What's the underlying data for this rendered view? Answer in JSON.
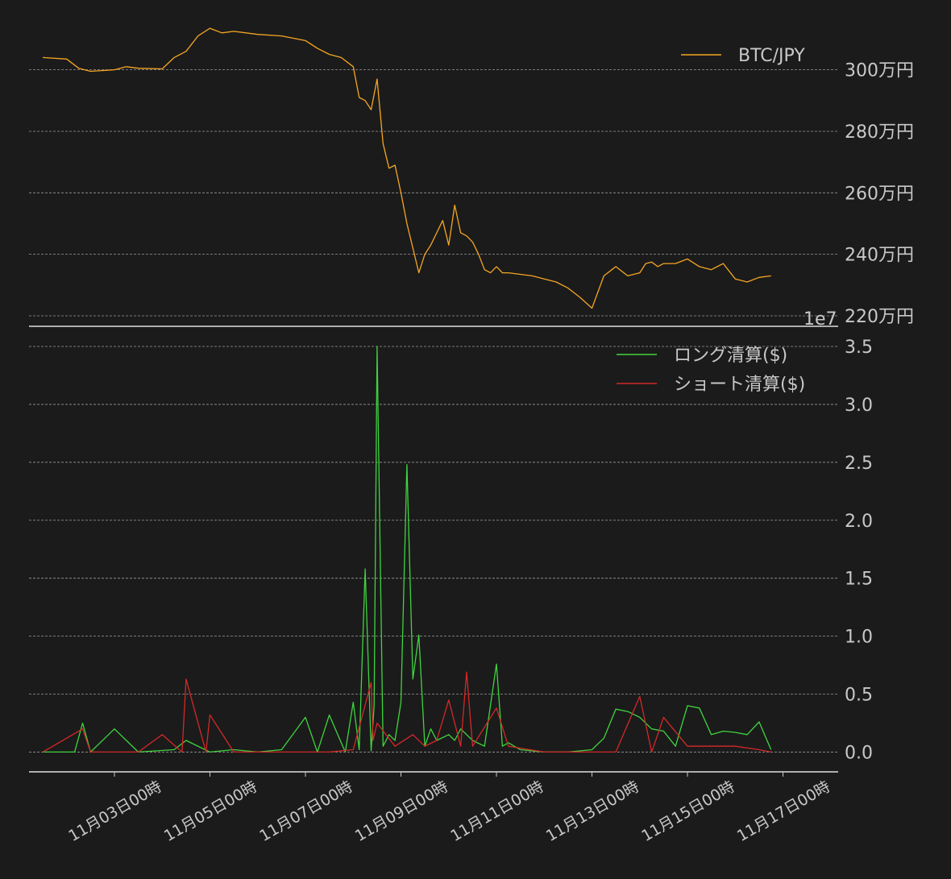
{
  "chart_data": [
    {
      "type": "line",
      "panel": "top",
      "legend_position": "top-right",
      "grid": "horizontal-dashed",
      "ylim": [
        2200000,
        3130000
      ],
      "yticks": [
        2200000,
        2400000,
        2600000,
        2800000,
        3000000
      ],
      "ytick_labels": [
        "220万円",
        "240万円",
        "260万円",
        "280万円",
        "300万円"
      ],
      "offset_label": "1e7",
      "series": [
        {
          "name": "BTC/JPY",
          "color": "#f5a623",
          "x": [
            "2023-11-01 12:00",
            "2023-11-02 00:00",
            "2023-11-02 06:00",
            "2023-11-02 12:00",
            "2023-11-03 00:00",
            "2023-11-03 06:00",
            "2023-11-03 12:00",
            "2023-11-04 00:00",
            "2023-11-04 06:00",
            "2023-11-04 12:00",
            "2023-11-04 18:00",
            "2023-11-05 00:00",
            "2023-11-05 06:00",
            "2023-11-05 12:00",
            "2023-11-06 00:00",
            "2023-11-06 12:00",
            "2023-11-07 00:00",
            "2023-11-07 06:00",
            "2023-11-07 12:00",
            "2023-11-07 18:00",
            "2023-11-08 00:00",
            "2023-11-08 03:00",
            "2023-11-08 06:00",
            "2023-11-08 09:00",
            "2023-11-08 12:00",
            "2023-11-08 15:00",
            "2023-11-08 18:00",
            "2023-11-08 21:00",
            "2023-11-09 00:00",
            "2023-11-09 03:00",
            "2023-11-09 06:00",
            "2023-11-09 09:00",
            "2023-11-09 12:00",
            "2023-11-09 15:00",
            "2023-11-09 18:00",
            "2023-11-09 21:00",
            "2023-11-10 00:00",
            "2023-11-10 03:00",
            "2023-11-10 06:00",
            "2023-11-10 09:00",
            "2023-11-10 12:00",
            "2023-11-10 15:00",
            "2023-11-10 18:00",
            "2023-11-10 21:00",
            "2023-11-11 00:00",
            "2023-11-11 03:00",
            "2023-11-11 06:00",
            "2023-11-11 12:00",
            "2023-11-11 18:00",
            "2023-11-12 00:00",
            "2023-11-12 06:00",
            "2023-11-12 12:00",
            "2023-11-12 18:00",
            "2023-11-13 00:00",
            "2023-11-13 06:00",
            "2023-11-13 12:00",
            "2023-11-13 18:00",
            "2023-11-14 00:00",
            "2023-11-14 03:00",
            "2023-11-14 06:00",
            "2023-11-14 09:00",
            "2023-11-14 12:00",
            "2023-11-14 18:00",
            "2023-11-15 00:00",
            "2023-11-15 06:00",
            "2023-11-15 12:00",
            "2023-11-15 18:00",
            "2023-11-16 00:00",
            "2023-11-16 06:00",
            "2023-11-16 12:00",
            "2023-11-16 18:00"
          ],
          "values": [
            3040000,
            3035000,
            3005000,
            2995000,
            3000000,
            3010000,
            3005000,
            3003000,
            3040000,
            3060000,
            3110000,
            3135000,
            3120000,
            3125000,
            3115000,
            3110000,
            3095000,
            3070000,
            3050000,
            3040000,
            3010000,
            2910000,
            2900000,
            2870000,
            2970000,
            2760000,
            2680000,
            2690000,
            2600000,
            2500000,
            2420000,
            2340000,
            2400000,
            2430000,
            2470000,
            2510000,
            2430000,
            2560000,
            2470000,
            2460000,
            2440000,
            2400000,
            2350000,
            2340000,
            2360000,
            2340000,
            2340000,
            2335000,
            2330000,
            2320000,
            2310000,
            2290000,
            2260000,
            2225000,
            2330000,
            2360000,
            2330000,
            2340000,
            2370000,
            2375000,
            2360000,
            2370000,
            2370000,
            2385000,
            2360000,
            2350000,
            2370000,
            2320000,
            2310000,
            2325000,
            2330000
          ]
        }
      ]
    },
    {
      "type": "line",
      "panel": "bottom",
      "legend_position": "top-right",
      "grid": "horizontal-dashed",
      "ylim": [
        -0.15,
        3.5
      ],
      "yticks": [
        0.0,
        0.5,
        1.0,
        1.5,
        2.0,
        2.5,
        3.0,
        3.5
      ],
      "ytick_labels": [
        "0.0",
        "0.5",
        "1.0",
        "1.5",
        "2.0",
        "2.5",
        "3.0",
        "3.5"
      ],
      "offset_label": "1e7",
      "xtick_labels": [
        "11月03日00時",
        "11月05日00時",
        "11月07日00時",
        "11月09日00時",
        "11月11日00時",
        "11月13日00時",
        "11月15日00時",
        "11月17日00時"
      ],
      "series": [
        {
          "name": "ロング清算($)",
          "color": "#3fd43f",
          "x": [
            "2023-11-01 12:00",
            "2023-11-02 04:00",
            "2023-11-02 08:00",
            "2023-11-02 12:00",
            "2023-11-03 00:00",
            "2023-11-03 12:00",
            "2023-11-04 06:00",
            "2023-11-04 12:00",
            "2023-11-05 00:00",
            "2023-11-05 12:00",
            "2023-11-06 00:00",
            "2023-11-06 12:00",
            "2023-11-07 00:00",
            "2023-11-07 06:00",
            "2023-11-07 12:00",
            "2023-11-07 20:00",
            "2023-11-08 00:00",
            "2023-11-08 03:00",
            "2023-11-08 06:00",
            "2023-11-08 09:00",
            "2023-11-08 10:30",
            "2023-11-08 12:00",
            "2023-11-08 15:00",
            "2023-11-08 18:00",
            "2023-11-08 21:00",
            "2023-11-09 00:00",
            "2023-11-09 03:00",
            "2023-11-09 06:00",
            "2023-11-09 09:00",
            "2023-11-09 12:00",
            "2023-11-09 15:00",
            "2023-11-09 18:00",
            "2023-11-10 00:00",
            "2023-11-10 03:00",
            "2023-11-10 06:00",
            "2023-11-10 12:00",
            "2023-11-10 18:00",
            "2023-11-11 00:00",
            "2023-11-11 03:00",
            "2023-11-11 06:00",
            "2023-11-11 12:00",
            "2023-11-12 00:00",
            "2023-11-12 12:00",
            "2023-11-13 00:00",
            "2023-11-13 06:00",
            "2023-11-13 12:00",
            "2023-11-13 18:00",
            "2023-11-14 00:00",
            "2023-11-14 06:00",
            "2023-11-14 12:00",
            "2023-11-14 18:00",
            "2023-11-15 00:00",
            "2023-11-15 06:00",
            "2023-11-15 12:00",
            "2023-11-15 18:00",
            "2023-11-16 00:00",
            "2023-11-16 06:00",
            "2023-11-16 12:00",
            "2023-11-16 18:00"
          ],
          "values": [
            0.0,
            0.0,
            0.25,
            0.0,
            0.2,
            0.0,
            0.02,
            0.1,
            0.0,
            0.02,
            0.0,
            0.02,
            0.3,
            0.0,
            0.32,
            0.0,
            0.43,
            0.02,
            1.58,
            0.01,
            0.4,
            3.5,
            0.05,
            0.15,
            0.1,
            0.43,
            2.48,
            0.63,
            1.01,
            0.05,
            0.2,
            0.1,
            0.15,
            0.1,
            0.2,
            0.1,
            0.05,
            0.76,
            0.05,
            0.08,
            0.02,
            0.0,
            0.0,
            0.02,
            0.12,
            0.37,
            0.35,
            0.3,
            0.2,
            0.18,
            0.05,
            0.4,
            0.38,
            0.15,
            0.18,
            0.17,
            0.15,
            0.26,
            0.02
          ]
        },
        {
          "name": "ショート清算($)",
          "color": "#d42828",
          "x": [
            "2023-11-01 12:00",
            "2023-11-02 08:00",
            "2023-11-02 12:00",
            "2023-11-03 12:00",
            "2023-11-04 00:00",
            "2023-11-04 10:00",
            "2023-11-04 12:00",
            "2023-11-04 22:00",
            "2023-11-05 00:00",
            "2023-11-05 12:00",
            "2023-11-06 12:00",
            "2023-11-07 12:00",
            "2023-11-08 00:00",
            "2023-11-08 09:00",
            "2023-11-08 10:00",
            "2023-11-08 12:00",
            "2023-11-08 21:00",
            "2023-11-09 06:00",
            "2023-11-09 12:00",
            "2023-11-09 18:00",
            "2023-11-10 00:00",
            "2023-11-10 06:00",
            "2023-11-10 09:00",
            "2023-11-10 12:00",
            "2023-11-11 00:00",
            "2023-11-11 06:00",
            "2023-11-12 00:00",
            "2023-11-13 00:00",
            "2023-11-13 12:00",
            "2023-11-14 00:00",
            "2023-11-14 06:00",
            "2023-11-14 12:00",
            "2023-11-15 00:00",
            "2023-11-15 12:00",
            "2023-11-16 00:00",
            "2023-11-16 12:00",
            "2023-11-16 18:00"
          ],
          "values": [
            0.0,
            0.2,
            0.0,
            0.0,
            0.15,
            0.0,
            0.63,
            0.0,
            0.32,
            0.0,
            0.0,
            0.0,
            0.02,
            0.6,
            0.1,
            0.25,
            0.05,
            0.15,
            0.05,
            0.1,
            0.45,
            0.05,
            0.69,
            0.05,
            0.38,
            0.05,
            0.0,
            0.0,
            0.0,
            0.48,
            0.0,
            0.3,
            0.05,
            0.05,
            0.05,
            0.02,
            0.0
          ]
        }
      ]
    }
  ]
}
